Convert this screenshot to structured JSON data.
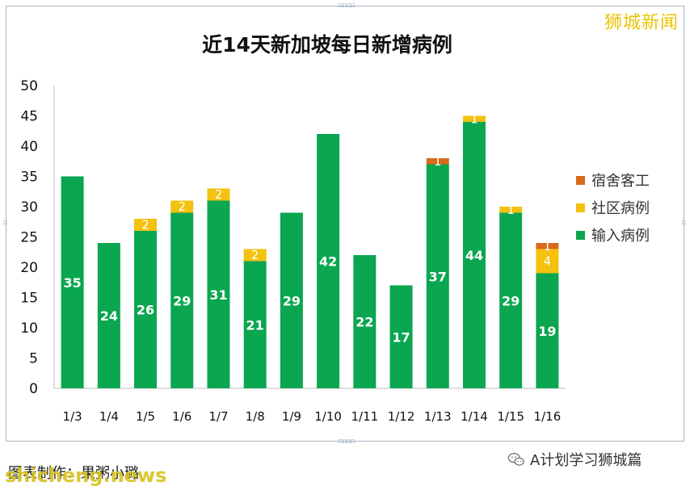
{
  "brand": "狮城新闻",
  "caption": "图表制作：果粥小璐",
  "watermark": "shicheng.news",
  "account": "A计划学习狮城篇",
  "account_icon": "wechat-icon",
  "colors": {
    "input": "#0aa650",
    "community": "#f4c10f",
    "dorm": "#d96a1a"
  },
  "chart_data": {
    "type": "bar",
    "stacked": true,
    "title": "近14天新加坡每日新增病例",
    "xlabel": "",
    "ylabel": "",
    "ylim": [
      0,
      50
    ],
    "yticks": [
      0,
      5,
      10,
      15,
      20,
      25,
      30,
      35,
      40,
      45,
      50
    ],
    "grid": false,
    "legend_position": "right",
    "categories": [
      "1/3",
      "1/4",
      "1/5",
      "1/6",
      "1/7",
      "1/8",
      "1/9",
      "1/10",
      "1/11",
      "1/12",
      "1/13",
      "1/14",
      "1/15",
      "1/16"
    ],
    "series": [
      {
        "name": "输入病例",
        "color": "#0aa650",
        "values": [
          35,
          24,
          26,
          29,
          31,
          21,
          29,
          42,
          22,
          17,
          37,
          44,
          29,
          19
        ]
      },
      {
        "name": "社区病例",
        "color": "#f4c10f",
        "values": [
          0,
          0,
          2,
          2,
          2,
          2,
          0,
          0,
          0,
          0,
          0,
          1,
          1,
          4
        ]
      },
      {
        "name": "宿舍客工",
        "color": "#d96a1a",
        "values": [
          0,
          0,
          0,
          0,
          0,
          0,
          0,
          0,
          0,
          0,
          1,
          0,
          0,
          1
        ]
      }
    ]
  }
}
